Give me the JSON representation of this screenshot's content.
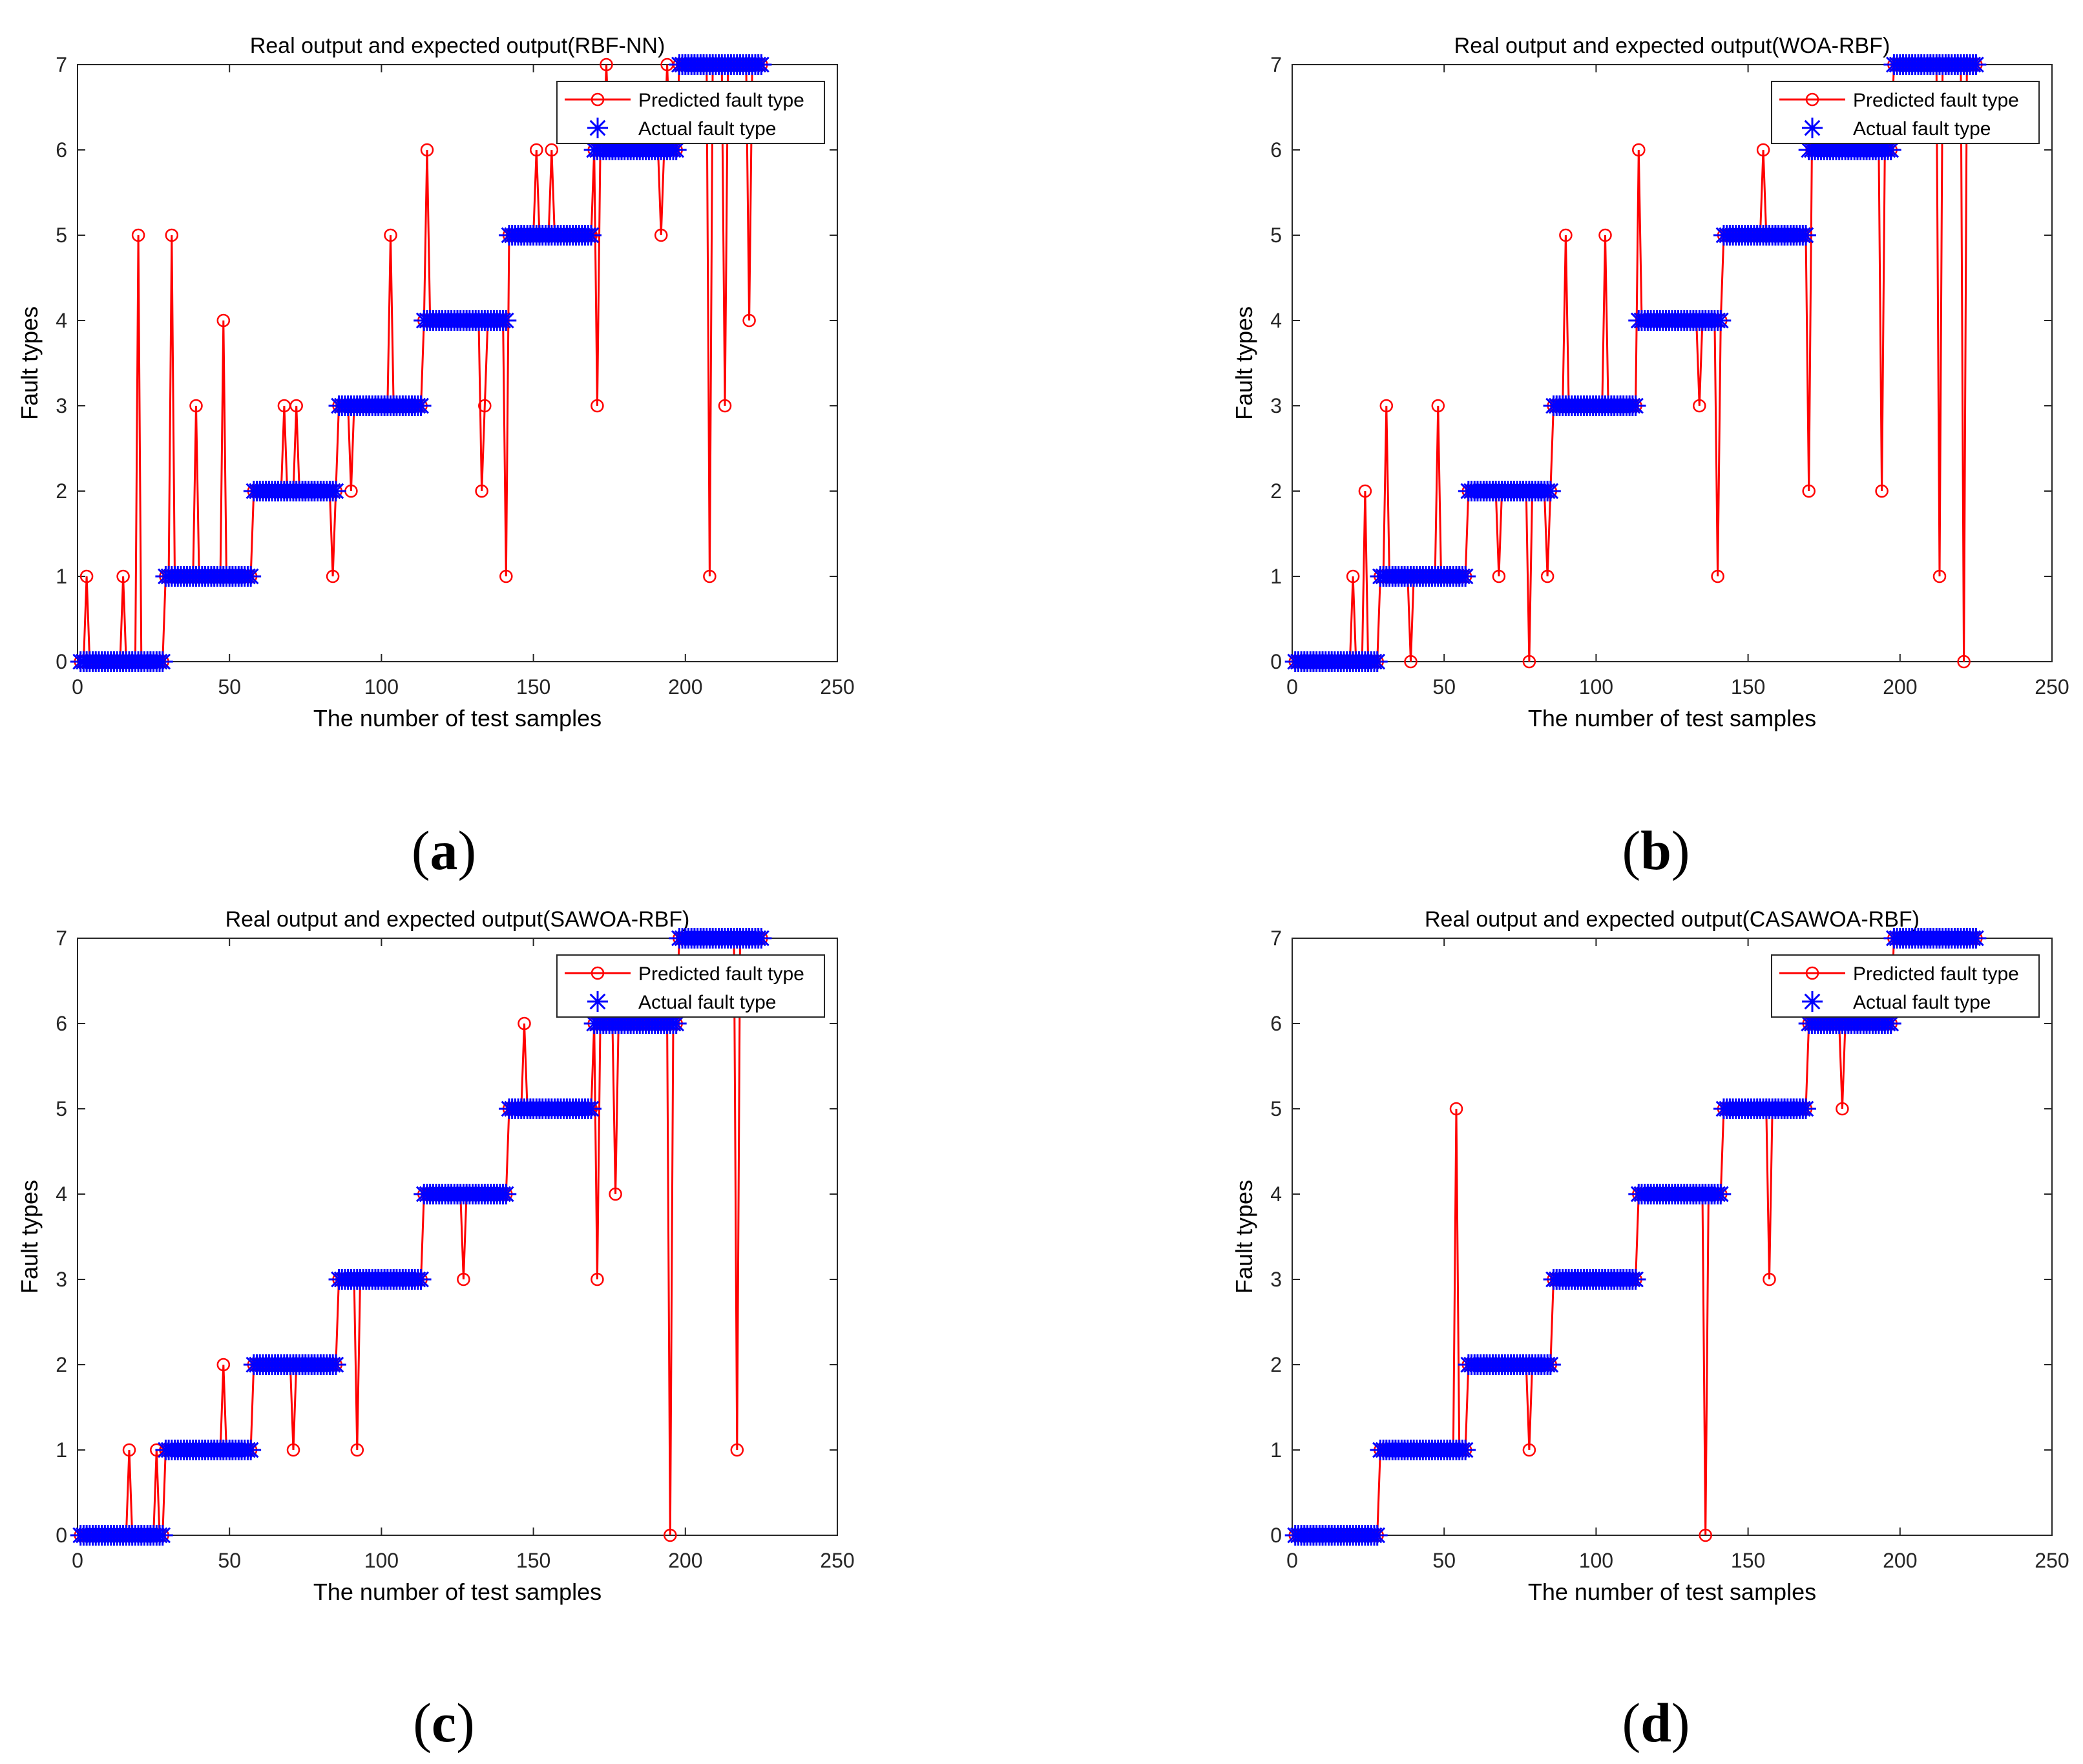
{
  "figure": {
    "panel_labels": [
      "a",
      "b",
      "c",
      "d"
    ]
  },
  "colors": {
    "predicted": "#ff0000",
    "actual": "#0000ff",
    "axes": "#262626",
    "grid": "#999999"
  },
  "chart_data": [
    {
      "type": "line",
      "panel": "a",
      "title": "Real output and expected output(RBF-NN)",
      "xlabel": "The number of test samples",
      "ylabel": "Fault types",
      "xlim": [
        0,
        250
      ],
      "ylim": [
        0,
        7
      ],
      "xticks": [
        0,
        50,
        100,
        150,
        200,
        250
      ],
      "yticks": [
        0,
        1,
        2,
        3,
        4,
        5,
        6,
        7
      ],
      "legend": {
        "position": "top-right",
        "entries": [
          "Predicted fault type",
          "Actual fault type"
        ]
      },
      "actual_segments": [
        [
          1,
          28,
          0
        ],
        [
          29,
          57,
          1
        ],
        [
          58,
          85,
          2
        ],
        [
          86,
          113,
          3
        ],
        [
          114,
          141,
          4
        ],
        [
          142,
          169,
          5
        ],
        [
          170,
          197,
          6
        ],
        [
          198,
          225,
          7
        ]
      ],
      "predicted_deviations": [
        [
          3,
          1
        ],
        [
          15,
          1
        ],
        [
          20,
          5
        ],
        [
          31,
          5
        ],
        [
          39,
          3
        ],
        [
          48,
          4
        ],
        [
          68,
          3
        ],
        [
          72,
          3
        ],
        [
          84,
          1
        ],
        [
          90,
          2
        ],
        [
          103,
          5
        ],
        [
          115,
          6
        ],
        [
          133,
          2
        ],
        [
          134,
          3
        ],
        [
          141,
          1
        ],
        [
          151,
          6
        ],
        [
          156,
          6
        ],
        [
          171,
          3
        ],
        [
          174,
          7
        ],
        [
          192,
          5
        ],
        [
          194,
          7
        ],
        [
          208,
          1
        ],
        [
          213,
          3
        ],
        [
          221,
          4
        ]
      ]
    },
    {
      "type": "line",
      "panel": "b",
      "title": "Real output and expected output(WOA-RBF)",
      "xlabel": "The number of test samples",
      "ylabel": "Fault types",
      "xlim": [
        0,
        250
      ],
      "ylim": [
        0,
        7
      ],
      "xticks": [
        0,
        50,
        100,
        150,
        200,
        250
      ],
      "yticks": [
        0,
        1,
        2,
        3,
        4,
        5,
        6,
        7
      ],
      "legend": {
        "position": "top-right",
        "entries": [
          "Predicted fault type",
          "Actual fault type"
        ]
      },
      "actual_segments": [
        [
          1,
          28,
          0
        ],
        [
          29,
          57,
          1
        ],
        [
          58,
          85,
          2
        ],
        [
          86,
          113,
          3
        ],
        [
          114,
          141,
          4
        ],
        [
          142,
          169,
          5
        ],
        [
          170,
          197,
          6
        ],
        [
          198,
          225,
          7
        ]
      ],
      "predicted_deviations": [
        [
          20,
          1
        ],
        [
          24,
          2
        ],
        [
          31,
          3
        ],
        [
          39,
          0
        ],
        [
          48,
          3
        ],
        [
          68,
          1
        ],
        [
          78,
          0
        ],
        [
          84,
          1
        ],
        [
          90,
          5
        ],
        [
          103,
          5
        ],
        [
          114,
          6
        ],
        [
          134,
          3
        ],
        [
          140,
          1
        ],
        [
          155,
          6
        ],
        [
          170,
          2
        ],
        [
          194,
          2
        ],
        [
          213,
          1
        ],
        [
          221,
          0
        ]
      ]
    },
    {
      "type": "line",
      "panel": "c",
      "title": "Real output and expected output(SAWOA-RBF)",
      "xlabel": "The number of test samples",
      "ylabel": "Fault types",
      "xlim": [
        0,
        250
      ],
      "ylim": [
        0,
        7
      ],
      "xticks": [
        0,
        50,
        100,
        150,
        200,
        250
      ],
      "yticks": [
        0,
        1,
        2,
        3,
        4,
        5,
        6,
        7
      ],
      "legend": {
        "position": "top-right",
        "entries": [
          "Predicted fault type",
          "Actual fault type"
        ]
      },
      "actual_segments": [
        [
          1,
          28,
          0
        ],
        [
          29,
          57,
          1
        ],
        [
          58,
          85,
          2
        ],
        [
          86,
          113,
          3
        ],
        [
          114,
          141,
          4
        ],
        [
          142,
          169,
          5
        ],
        [
          170,
          197,
          6
        ],
        [
          198,
          225,
          7
        ]
      ],
      "predicted_deviations": [
        [
          17,
          1
        ],
        [
          26,
          1
        ],
        [
          48,
          2
        ],
        [
          71,
          1
        ],
        [
          92,
          1
        ],
        [
          127,
          3
        ],
        [
          147,
          6
        ],
        [
          171,
          3
        ],
        [
          177,
          4
        ],
        [
          195,
          0
        ],
        [
          217,
          1
        ]
      ]
    },
    {
      "type": "line",
      "panel": "d",
      "title": "Real output and expected output(CASAWOA-RBF)",
      "xlabel": "The number of test samples",
      "ylabel": "Fault types",
      "xlim": [
        0,
        250
      ],
      "ylim": [
        0,
        7
      ],
      "xticks": [
        0,
        50,
        100,
        150,
        200,
        250
      ],
      "yticks": [
        0,
        1,
        2,
        3,
        4,
        5,
        6,
        7
      ],
      "legend": {
        "position": "top-right",
        "entries": [
          "Predicted fault type",
          "Actual fault type"
        ]
      },
      "actual_segments": [
        [
          1,
          28,
          0
        ],
        [
          29,
          57,
          1
        ],
        [
          58,
          85,
          2
        ],
        [
          86,
          113,
          3
        ],
        [
          114,
          141,
          4
        ],
        [
          142,
          169,
          5
        ],
        [
          170,
          197,
          6
        ],
        [
          198,
          225,
          7
        ]
      ],
      "predicted_deviations": [
        [
          54,
          5
        ],
        [
          78,
          1
        ],
        [
          136,
          0
        ],
        [
          157,
          3
        ],
        [
          181,
          5
        ]
      ]
    }
  ]
}
